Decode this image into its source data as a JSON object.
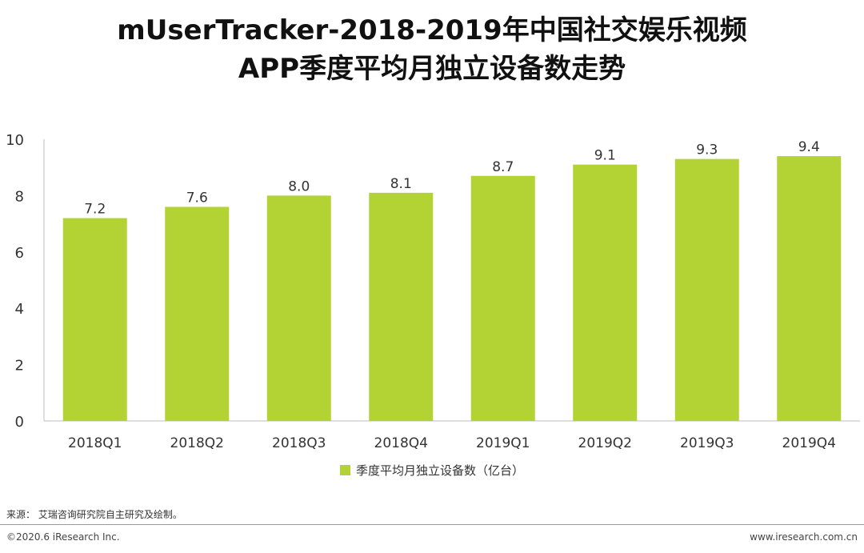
{
  "title_line1": "mUserTracker-2018-2019年中国社交娱乐视频",
  "title_line2": "APP季度平均月独立设备数走势",
  "source": "来源：  艾瑞咨询研究院自主研究及绘制。",
  "copyright": "©2020.6 iResearch Inc.",
  "website": "www.iresearch.com.cn",
  "chart_data": {
    "type": "bar",
    "categories": [
      "2018Q1",
      "2018Q2",
      "2018Q3",
      "2018Q4",
      "2019Q1",
      "2019Q2",
      "2019Q3",
      "2019Q4"
    ],
    "series": [
      {
        "name": "季度平均月独立设备数（亿台）",
        "values": [
          7.2,
          7.6,
          8.0,
          8.1,
          8.7,
          9.1,
          9.3,
          9.4
        ],
        "color": "#b3d234"
      }
    ],
    "value_labels": [
      "7.2",
      "7.6",
      "8.0",
      "8.1",
      "8.7",
      "9.1",
      "9.3",
      "9.4"
    ],
    "ylim": [
      0,
      10
    ],
    "yticks": [
      0,
      2,
      4,
      6,
      8,
      10
    ],
    "grid": false,
    "legend_position": "bottom"
  }
}
